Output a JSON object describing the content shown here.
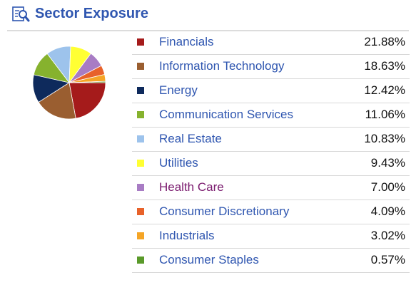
{
  "header": {
    "title": "Sector Exposure",
    "icon": "magnifier-document-icon"
  },
  "sectors": [
    {
      "name": "Financials",
      "value": "21.88%",
      "pct": 21.88,
      "color": "#a51b1b"
    },
    {
      "name": "Information Technology",
      "value": "18.63%",
      "pct": 18.63,
      "color": "#9a5e30"
    },
    {
      "name": "Energy",
      "value": "12.42%",
      "pct": 12.42,
      "color": "#0e2a5c"
    },
    {
      "name": "Communication Services",
      "value": "11.06%",
      "pct": 11.06,
      "color": "#86b22e"
    },
    {
      "name": "Real Estate",
      "value": "10.83%",
      "pct": 10.83,
      "color": "#9dc3ec"
    },
    {
      "name": "Utilities",
      "value": "9.43%",
      "pct": 9.43,
      "color": "#ffff33"
    },
    {
      "name": "Health Care",
      "value": "7.00%",
      "pct": 7.0,
      "color": "#a87cc4",
      "visited": true
    },
    {
      "name": "Consumer Discretionary",
      "value": "4.09%",
      "pct": 4.09,
      "color": "#e8622a"
    },
    {
      "name": "Industrials",
      "value": "3.02%",
      "pct": 3.02,
      "color": "#f5a526"
    },
    {
      "name": "Consumer Staples",
      "value": "0.57%",
      "pct": 0.57,
      "color": "#5a9a2a"
    }
  ]
}
